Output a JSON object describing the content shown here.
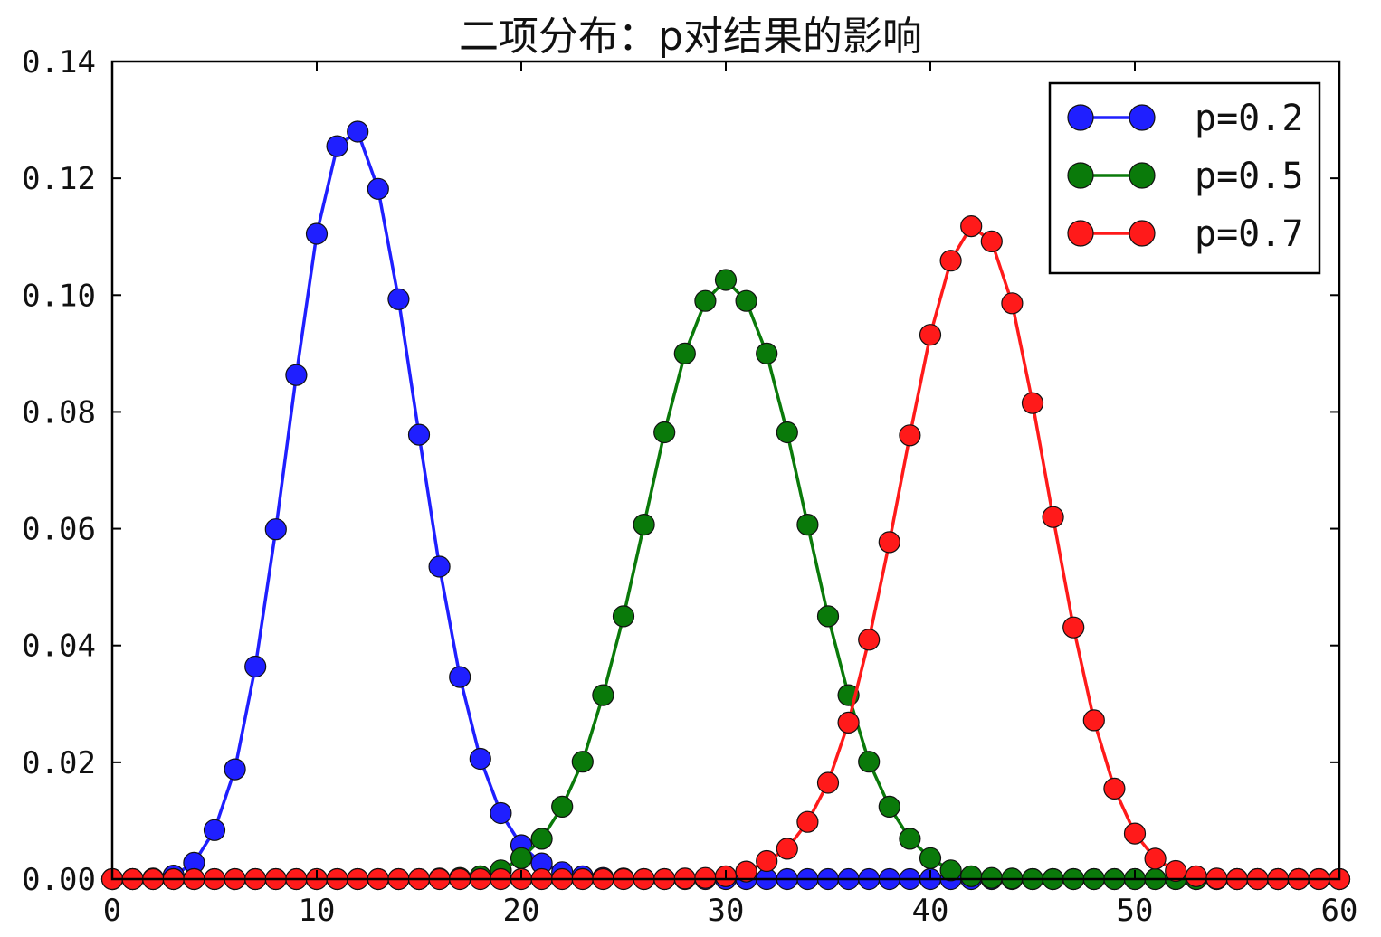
{
  "chart_data": {
    "type": "line",
    "title": "二项分布：p对结果的影响",
    "xlabel": "",
    "ylabel": "",
    "xlim": [
      0,
      60
    ],
    "ylim": [
      0,
      0.14
    ],
    "xticks": [
      0,
      10,
      20,
      30,
      40,
      50,
      60
    ],
    "xtick_labels": [
      "0",
      "10",
      "20",
      "30",
      "40",
      "50",
      "60"
    ],
    "yticks": [
      0,
      0.02,
      0.04,
      0.06,
      0.08,
      0.1,
      0.12,
      0.14
    ],
    "ytick_labels": [
      "0.00",
      "0.02",
      "0.04",
      "0.06",
      "0.08",
      "0.10",
      "0.12",
      "0.14"
    ],
    "grid": false,
    "legend_position": "top-right",
    "marker": "circle",
    "x": [
      0,
      1,
      2,
      3,
      4,
      5,
      6,
      7,
      8,
      9,
      10,
      11,
      12,
      13,
      14,
      15,
      16,
      17,
      18,
      19,
      20,
      21,
      22,
      23,
      24,
      25,
      26,
      27,
      28,
      29,
      30,
      31,
      32,
      33,
      34,
      35,
      36,
      37,
      38,
      39,
      40,
      41,
      42,
      43,
      44,
      45,
      46,
      47,
      48,
      49,
      50,
      51,
      52,
      53,
      54,
      55,
      56,
      57,
      58,
      59,
      60
    ],
    "series": [
      {
        "name": "p=0.2",
        "color": "#1f1fff",
        "values": [
          0.0,
          0.0,
          0.0001,
          0.0006,
          0.0028,
          0.0084,
          0.0188,
          0.0364,
          0.0599,
          0.0863,
          0.1105,
          0.1255,
          0.128,
          0.1182,
          0.0993,
          0.0761,
          0.0535,
          0.0346,
          0.0206,
          0.0113,
          0.0058,
          0.0027,
          0.0012,
          0.0005,
          0.0002,
          0.0001,
          0.0,
          0.0,
          0.0,
          0.0,
          0.0,
          0.0,
          0.0,
          0.0,
          0.0,
          0.0,
          0.0,
          0.0,
          0.0,
          0.0,
          0.0,
          0.0,
          0.0,
          0.0,
          0.0,
          0.0,
          0.0,
          0.0,
          0.0,
          0.0,
          0.0,
          0.0,
          0.0,
          0.0,
          0.0,
          0.0,
          0.0,
          0.0,
          0.0,
          0.0,
          0.0
        ]
      },
      {
        "name": "p=0.5",
        "color": "#0a7a0a",
        "values": [
          0.0,
          0.0,
          0.0,
          0.0,
          0.0,
          0.0,
          0.0,
          0.0,
          0.0,
          0.0,
          0.0,
          0.0,
          0.0,
          0.0,
          0.0,
          0.0,
          0.0001,
          0.0002,
          0.0005,
          0.0015,
          0.0036,
          0.0069,
          0.0124,
          0.0201,
          0.0315,
          0.045,
          0.0607,
          0.0765,
          0.09,
          0.099,
          0.1026,
          0.099,
          0.09,
          0.0765,
          0.0607,
          0.045,
          0.0315,
          0.0201,
          0.0124,
          0.0069,
          0.0036,
          0.0015,
          0.0005,
          0.0002,
          0.0001,
          0.0,
          0.0,
          0.0,
          0.0,
          0.0,
          0.0,
          0.0,
          0.0,
          0.0,
          0.0,
          0.0,
          0.0,
          0.0,
          0.0,
          0.0,
          0.0
        ]
      },
      {
        "name": "p=0.7",
        "color": "#ff1a1a",
        "values": [
          0.0,
          0.0,
          0.0,
          0.0,
          0.0,
          0.0,
          0.0,
          0.0,
          0.0,
          0.0,
          0.0,
          0.0,
          0.0,
          0.0,
          0.0,
          0.0,
          0.0,
          0.0,
          0.0,
          0.0,
          0.0,
          0.0,
          0.0,
          0.0,
          0.0,
          0.0,
          0.0,
          0.0,
          0.0001,
          0.0002,
          0.0005,
          0.0013,
          0.0031,
          0.0052,
          0.0098,
          0.0165,
          0.0268,
          0.041,
          0.0577,
          0.076,
          0.0932,
          0.1059,
          0.1118,
          0.1092,
          0.0986,
          0.0815,
          0.062,
          0.0431,
          0.0272,
          0.0155,
          0.0078,
          0.0035,
          0.0014,
          0.0005,
          0.0001,
          0.0,
          0.0,
          0.0,
          0.0,
          0.0,
          0.0
        ]
      }
    ]
  }
}
